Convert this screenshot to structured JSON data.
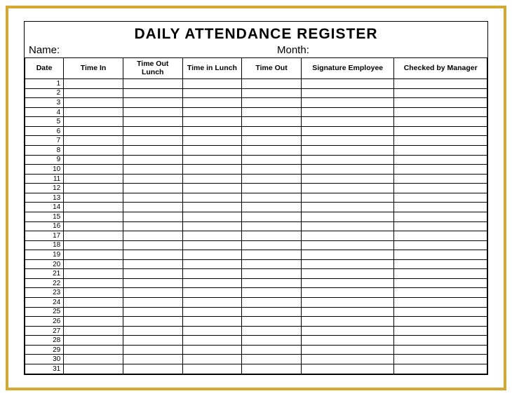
{
  "title": "DAILY ATTENDANCE REGISTER",
  "meta": {
    "name_label": "Name:",
    "month_label": "Month:"
  },
  "columns": [
    "Date",
    "Time In",
    "Time Out Lunch",
    "Time in Lunch",
    "Time Out",
    "Signature Employee",
    "Checked by Manager"
  ],
  "row_count": 31,
  "style": {
    "frame_color": "#d4a92e",
    "border_color": "#000000",
    "background": "#ffffff",
    "title_fontsize": 21,
    "header_fontsize": 10.5,
    "cell_fontsize": 10
  }
}
